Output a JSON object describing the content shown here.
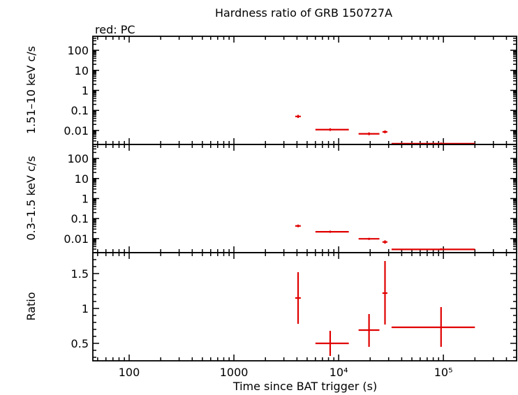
{
  "chart_data": {
    "type": "scatter",
    "title": "Hardness ratio of GRB 150727A",
    "subtitle": "red: PC",
    "xlabel": "Time since BAT trigger (s)",
    "x_scale": "log",
    "xlim": [
      45,
      500000
    ],
    "x_tick_labels": [
      "100",
      "1000",
      "10⁴",
      "10⁵"
    ],
    "series_color": "#e00000",
    "panels": [
      {
        "ylabel": "1.51–10 keV c/s",
        "y_scale": "log",
        "ylim": [
          0.002,
          500
        ],
        "y_tick_labels": [
          "100",
          "10",
          "1",
          "0.1",
          "0.01"
        ],
        "points": [
          {
            "x": 4100,
            "xlo": 3850,
            "xhi": 4350,
            "y": 0.05,
            "ylo": 0.042,
            "yhi": 0.06
          },
          {
            "x": 8300,
            "xlo": 6000,
            "xhi": 12500,
            "y": 0.011,
            "ylo": 0.0095,
            "yhi": 0.0128
          },
          {
            "x": 19500,
            "xlo": 15500,
            "xhi": 24500,
            "y": 0.0068,
            "ylo": 0.0058,
            "yhi": 0.008
          },
          {
            "x": 27700,
            "xlo": 26200,
            "xhi": 29200,
            "y": 0.0085,
            "ylo": 0.0072,
            "yhi": 0.01
          },
          {
            "x": 95000,
            "xlo": 32000,
            "xhi": 200000,
            "y": 0.0022,
            "ylo": 0.0019,
            "yhi": 0.0025
          }
        ]
      },
      {
        "ylabel": "0.3–1.5 keV c/s",
        "y_scale": "log",
        "ylim": [
          0.002,
          500
        ],
        "y_tick_labels": [
          "100",
          "10",
          "1",
          "0.1",
          "0.01"
        ],
        "points": [
          {
            "x": 4100,
            "xlo": 3850,
            "xhi": 4350,
            "y": 0.043,
            "ylo": 0.037,
            "yhi": 0.05
          },
          {
            "x": 8300,
            "xlo": 6000,
            "xhi": 12500,
            "y": 0.022,
            "ylo": 0.0195,
            "yhi": 0.025
          },
          {
            "x": 19500,
            "xlo": 15500,
            "xhi": 24500,
            "y": 0.0098,
            "ylo": 0.0086,
            "yhi": 0.011
          },
          {
            "x": 27700,
            "xlo": 26200,
            "xhi": 29200,
            "y": 0.0068,
            "ylo": 0.0056,
            "yhi": 0.0082
          },
          {
            "x": 95000,
            "xlo": 32000,
            "xhi": 200000,
            "y": 0.0029,
            "ylo": 0.0026,
            "yhi": 0.0033
          }
        ]
      },
      {
        "ylabel": "Ratio",
        "y_scale": "linear",
        "ylim": [
          0.25,
          1.8
        ],
        "y_ticks": [
          0.5,
          1,
          1.5
        ],
        "y_tick_labels": [
          "0.5",
          "1",
          "1.5"
        ],
        "points": [
          {
            "x": 4100,
            "xlo": 3850,
            "xhi": 4350,
            "y": 1.15,
            "ylo": 0.78,
            "yhi": 1.52
          },
          {
            "x": 8300,
            "xlo": 6000,
            "xhi": 12500,
            "y": 0.5,
            "ylo": 0.32,
            "yhi": 0.68
          },
          {
            "x": 19500,
            "xlo": 15500,
            "xhi": 24500,
            "y": 0.69,
            "ylo": 0.45,
            "yhi": 0.92
          },
          {
            "x": 27700,
            "xlo": 26200,
            "xhi": 29200,
            "y": 1.22,
            "ylo": 0.77,
            "yhi": 1.68
          },
          {
            "x": 95000,
            "xlo": 32000,
            "xhi": 200000,
            "y": 0.73,
            "ylo": 0.45,
            "yhi": 1.02
          }
        ]
      }
    ]
  }
}
